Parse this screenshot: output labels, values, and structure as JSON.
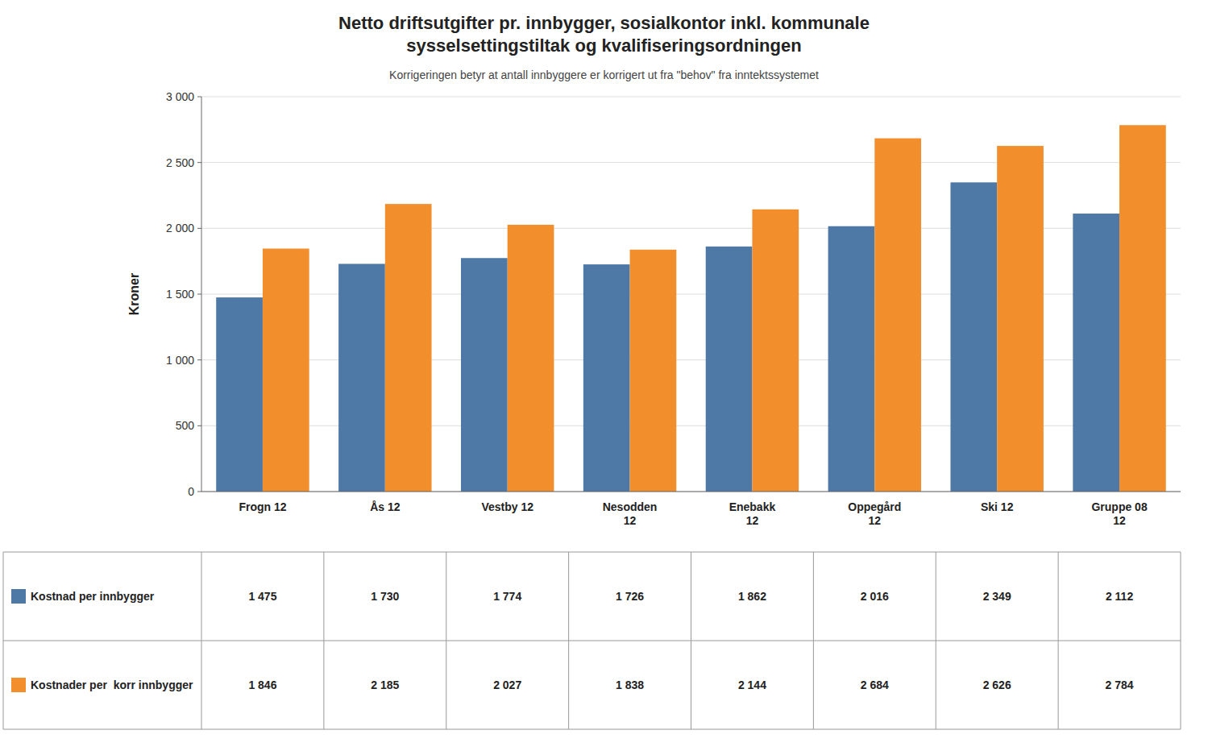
{
  "chart_data": {
    "type": "bar",
    "title": "Netto driftsutgifter pr. innbygger, sosialkontor inkl. kommunale\nsysselsettingstiltak og kvalifiseringsordningen",
    "subtitle": "Korrigeringen betyr at antall innbyggere er korrigert ut fra \"behov\" fra inntektssystemet",
    "ylabel": "Kroner",
    "categories": [
      "Frogn 12",
      "Ås 12",
      "Vestby 12",
      "Nesodden\n12",
      "Enebakk\n12",
      "Oppegård\n12",
      "Ski 12",
      "Gruppe 08\n12"
    ],
    "series": [
      {
        "name": "Kostnad per innbygger",
        "color": "#4e79a7",
        "values": [
          1475,
          1730,
          1774,
          1726,
          1862,
          2016,
          2349,
          2112
        ],
        "value_labels": [
          "1 475",
          "1 730",
          "1 774",
          "1 726",
          "1 862",
          "2 016",
          "2 349",
          "2 112"
        ]
      },
      {
        "name": "Kostnader per  korr innbygger",
        "color": "#f28e2b",
        "values": [
          1846,
          2185,
          2027,
          1838,
          2144,
          2684,
          2626,
          2784
        ],
        "value_labels": [
          "1 846",
          "2 185",
          "2 027",
          "1 838",
          "2 144",
          "2 684",
          "2 626",
          "2 784"
        ]
      }
    ],
    "ylim": [
      0,
      3000
    ],
    "yticks": [
      0,
      500,
      {
        "value": 1000,
        "label": "1 000"
      },
      {
        "value": 1500,
        "label": "1 500"
      },
      {
        "value": 2000,
        "label": "2 000"
      },
      {
        "value": 2500,
        "label": "2 500"
      },
      {
        "value": 3000,
        "label": "3 000"
      }
    ],
    "grid": true
  }
}
